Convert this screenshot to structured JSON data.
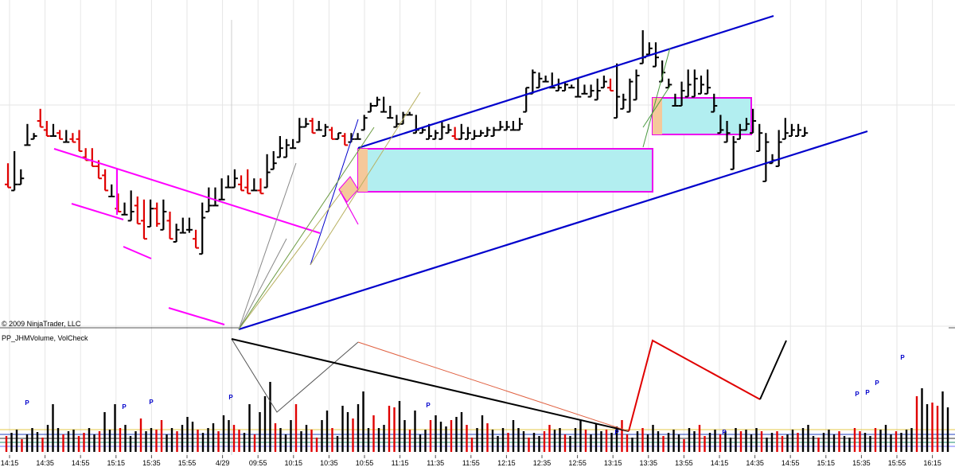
{
  "copyright": "© 2009 NinjaTrader, LLC",
  "indicator_label": "PP_JHMVolume, VolCheck",
  "colors": {
    "up_bar": "#000000",
    "down_bar": "#e00000",
    "channel": "#0000cc",
    "trendline": "#ff00ff",
    "zone_fill": "#b2eef0",
    "zone_border": "#ee00ee",
    "breakout_fill": "#f5c89a",
    "volume_up": "#000000",
    "volume_down": "#e00000",
    "volume_marker": "#0000cc",
    "grid": "#e6e6e6"
  },
  "chart_data": [
    {
      "type": "ohlc",
      "name": "price",
      "x_ticks": [
        "14:15",
        "14:35",
        "14:55",
        "15:15",
        "15:35",
        "15:55",
        "4/29",
        "09:55",
        "10:15",
        "10:35",
        "10:55",
        "11:15",
        "11:35",
        "11:55",
        "12:15",
        "12:35",
        "12:55",
        "13:15",
        "13:35",
        "13:55",
        "14:15",
        "14:35",
        "14:55",
        "15:15",
        "15:35",
        "15:55",
        "16:15"
      ],
      "grid": true,
      "bars": [
        [
          0.49,
          0.56,
          0.49,
          0.48
        ],
        [
          0.47,
          0.6,
          0.49,
          0.49
        ],
        [
          0.49,
          0.54,
          0.51,
          0.51
        ],
        [
          0.62,
          0.69,
          0.62,
          0.62
        ],
        [
          0.64,
          0.66,
          0.64,
          0.65
        ],
        [
          0.7,
          0.74,
          0.69,
          0.68
        ],
        [
          0.67,
          0.7,
          0.66,
          0.65
        ],
        [
          0.65,
          0.69,
          0.65,
          0.65
        ],
        [
          0.66,
          0.67,
          0.64,
          0.64
        ],
        [
          0.63,
          0.67,
          0.63,
          0.63
        ],
        [
          0.64,
          0.66,
          0.63,
          0.63
        ],
        [
          0.64,
          0.67,
          0.6,
          0.6
        ],
        [
          0.58,
          0.61,
          0.58,
          0.57
        ],
        [
          0.57,
          0.61,
          0.55,
          0.55
        ],
        [
          0.55,
          0.57,
          0.51,
          0.51
        ],
        [
          0.52,
          0.54,
          0.48,
          0.47
        ],
        [
          0.45,
          0.49,
          0.45,
          0.45
        ],
        [
          0.41,
          0.46,
          0.4,
          0.4
        ],
        [
          0.39,
          0.43,
          0.39,
          0.39
        ],
        [
          0.37,
          0.47,
          0.39,
          0.4
        ],
        [
          0.42,
          0.45,
          0.36,
          0.36
        ],
        [
          0.37,
          0.44,
          0.31,
          0.31
        ],
        [
          0.35,
          0.44,
          0.4,
          0.41
        ],
        [
          0.41,
          0.43,
          0.35,
          0.36
        ],
        [
          0.34,
          0.44,
          0.4,
          0.4
        ],
        [
          0.37,
          0.4,
          0.31,
          0.31
        ],
        [
          0.3,
          0.36,
          0.33,
          0.34
        ],
        [
          0.33,
          0.38,
          0.33,
          0.33
        ],
        [
          0.34,
          0.38,
          0.33,
          0.34
        ],
        [
          0.31,
          0.34,
          0.29,
          0.28
        ],
        [
          0.26,
          0.43,
          0.38,
          0.38
        ],
        [
          0.4,
          0.48,
          0.42,
          0.42
        ],
        [
          0.42,
          0.48,
          0.42,
          0.42
        ],
        [
          0.44,
          0.51,
          0.44,
          0.44
        ],
        [
          0.48,
          0.52,
          0.48,
          0.48
        ],
        [
          0.48,
          0.54,
          0.5,
          0.51
        ],
        [
          0.49,
          0.52,
          0.47,
          0.47
        ],
        [
          0.48,
          0.54,
          0.47,
          0.46
        ],
        [
          0.47,
          0.51,
          0.47,
          0.47
        ],
        [
          0.47,
          0.51,
          0.46,
          0.46
        ],
        [
          0.48,
          0.59,
          0.52,
          0.53
        ],
        [
          0.54,
          0.6,
          0.55,
          0.56
        ],
        [
          0.58,
          0.65,
          0.6,
          0.61
        ],
        [
          0.58,
          0.64,
          0.62,
          0.62
        ],
        [
          0.61,
          0.64,
          0.61,
          0.61
        ],
        [
          0.63,
          0.71,
          0.67,
          0.68
        ],
        [
          0.68,
          0.71,
          0.69,
          0.69
        ],
        [
          0.7,
          0.71,
          0.67,
          0.66
        ],
        [
          0.67,
          0.7,
          0.67,
          0.67
        ],
        [
          0.65,
          0.69,
          0.67,
          0.68
        ],
        [
          0.67,
          0.68,
          0.65,
          0.64
        ],
        [
          0.64,
          0.66,
          0.65,
          0.66
        ],
        [
          0.65,
          0.66,
          0.63,
          0.62
        ],
        [
          0.63,
          0.66,
          0.64,
          0.64
        ],
        [
          0.64,
          0.66,
          0.64,
          0.64
        ],
        [
          0.67,
          0.72,
          0.71,
          0.71
        ],
        [
          0.73,
          0.76,
          0.75,
          0.75
        ],
        [
          0.75,
          0.78,
          0.77,
          0.77
        ],
        [
          0.73,
          0.78,
          0.73,
          0.73
        ],
        [
          0.71,
          0.75,
          0.71,
          0.71
        ],
        [
          0.68,
          0.72,
          0.68,
          0.69
        ],
        [
          0.69,
          0.73,
          0.72,
          0.72
        ],
        [
          0.72,
          0.73,
          0.72,
          0.72
        ],
        [
          0.66,
          0.72,
          0.67,
          0.67
        ],
        [
          0.66,
          0.68,
          0.67,
          0.67
        ],
        [
          0.64,
          0.69,
          0.66,
          0.65
        ],
        [
          0.64,
          0.67,
          0.66,
          0.66
        ],
        [
          0.64,
          0.7,
          0.67,
          0.68
        ],
        [
          0.66,
          0.69,
          0.66,
          0.67
        ],
        [
          0.65,
          0.68,
          0.65,
          0.64
        ],
        [
          0.64,
          0.69,
          0.66,
          0.66
        ],
        [
          0.64,
          0.68,
          0.66,
          0.66
        ],
        [
          0.64,
          0.67,
          0.65,
          0.65
        ],
        [
          0.65,
          0.67,
          0.66,
          0.66
        ],
        [
          0.65,
          0.68,
          0.66,
          0.67
        ],
        [
          0.65,
          0.68,
          0.66,
          0.67
        ],
        [
          0.67,
          0.7,
          0.68,
          0.68
        ],
        [
          0.67,
          0.7,
          0.67,
          0.68
        ],
        [
          0.67,
          0.7,
          0.67,
          0.67
        ],
        [
          0.67,
          0.71,
          0.68,
          0.69
        ],
        [
          0.73,
          0.81,
          0.8,
          0.81
        ],
        [
          0.79,
          0.87,
          0.85,
          0.86
        ],
        [
          0.81,
          0.86,
          0.84,
          0.84
        ],
        [
          0.83,
          0.85,
          0.83,
          0.83
        ],
        [
          0.81,
          0.86,
          0.81,
          0.81
        ],
        [
          0.8,
          0.84,
          0.81,
          0.81
        ],
        [
          0.8,
          0.83,
          0.81,
          0.82
        ],
        [
          0.81,
          0.82,
          0.81,
          0.81
        ],
        [
          0.78,
          0.84,
          0.79,
          0.78
        ],
        [
          0.79,
          0.82,
          0.79,
          0.79
        ],
        [
          0.78,
          0.82,
          0.8,
          0.8
        ],
        [
          0.77,
          0.84,
          0.79,
          0.8
        ],
        [
          0.81,
          0.85,
          0.83,
          0.83
        ],
        [
          0.81,
          0.84,
          0.81,
          0.8
        ],
        [
          0.71,
          0.89,
          0.79,
          0.78
        ],
        [
          0.74,
          0.79,
          0.76,
          0.77
        ],
        [
          0.73,
          0.84,
          0.82,
          0.83
        ],
        [
          0.77,
          0.87,
          0.85,
          0.85
        ],
        [
          0.89,
          1.0,
          0.91,
          0.91
        ],
        [
          0.92,
          0.96,
          0.94,
          0.94
        ],
        [
          0.88,
          0.96,
          0.91,
          0.91
        ],
        [
          0.83,
          0.9,
          0.87,
          0.86
        ],
        [
          0.81,
          0.84,
          0.82,
          0.82
        ],
        [
          0.75,
          0.79,
          0.76,
          0.75
        ],
        [
          0.75,
          0.83,
          0.8,
          0.8
        ],
        [
          0.78,
          0.87,
          0.82,
          0.82
        ],
        [
          0.78,
          0.87,
          0.83,
          0.84
        ],
        [
          0.79,
          0.85,
          0.82,
          0.82
        ],
        [
          0.79,
          0.87,
          0.81,
          0.81
        ],
        [
          0.73,
          0.79,
          0.75,
          0.75
        ],
        [
          0.66,
          0.72,
          0.68,
          0.67
        ],
        [
          0.63,
          0.7,
          0.66,
          0.66
        ],
        [
          0.54,
          0.65,
          0.62,
          0.63
        ],
        [
          0.64,
          0.69,
          0.67,
          0.67
        ],
        [
          0.67,
          0.71,
          0.69,
          0.69
        ],
        [
          0.66,
          0.74,
          0.7,
          0.7
        ],
        [
          0.6,
          0.69,
          0.66,
          0.66
        ],
        [
          0.5,
          0.66,
          0.63,
          0.63
        ],
        [
          0.56,
          0.59,
          0.58,
          0.57
        ],
        [
          0.55,
          0.67,
          0.63,
          0.63
        ],
        [
          0.64,
          0.71,
          0.66,
          0.66
        ],
        [
          0.65,
          0.69,
          0.67,
          0.67
        ],
        [
          0.65,
          0.69,
          0.67,
          0.67
        ],
        [
          0.65,
          0.68,
          0.66,
          0.66
        ]
      ]
    },
    {
      "type": "bar",
      "name": "volume",
      "markers": [
        "P"
      ],
      "values": [
        9,
        9,
        10,
        10,
        10,
        11,
        10,
        12,
        11,
        13,
        12,
        12,
        10,
        11,
        12,
        14,
        13,
        11,
        12,
        13,
        12,
        14,
        13,
        15,
        15,
        14,
        11,
        13,
        12,
        11,
        15,
        13,
        13,
        14,
        12,
        13,
        12,
        12,
        13,
        12,
        14,
        13,
        13,
        14,
        12,
        13,
        11,
        11,
        12,
        11,
        10,
        11,
        10,
        11,
        12,
        11,
        11,
        14,
        13,
        12,
        11,
        13,
        12,
        11,
        13,
        12,
        12,
        11,
        12,
        13,
        12,
        14,
        11,
        13,
        15,
        15,
        13,
        13,
        14,
        13,
        12,
        13,
        12,
        13,
        13,
        12,
        13,
        13,
        12,
        14,
        12,
        13,
        14,
        13,
        12,
        14,
        15,
        14,
        14,
        15,
        13,
        13,
        14,
        13,
        15,
        14,
        15,
        13,
        14,
        13,
        12,
        13,
        12,
        14,
        14,
        12,
        15,
        15,
        14,
        14,
        14,
        14,
        13,
        13,
        14,
        13,
        15,
        14,
        12,
        12,
        14,
        13,
        12,
        13,
        15,
        14,
        14,
        15,
        14,
        13,
        12,
        15,
        14,
        13,
        14,
        14,
        13,
        15,
        15,
        13,
        13,
        12,
        15,
        13,
        14,
        13,
        13,
        14,
        12,
        15,
        15,
        14,
        13,
        14,
        14,
        13,
        14,
        12,
        15,
        15,
        14,
        13,
        14,
        14,
        14,
        13,
        12,
        14,
        15,
        15,
        14,
        13,
        14,
        15
      ]
    }
  ]
}
